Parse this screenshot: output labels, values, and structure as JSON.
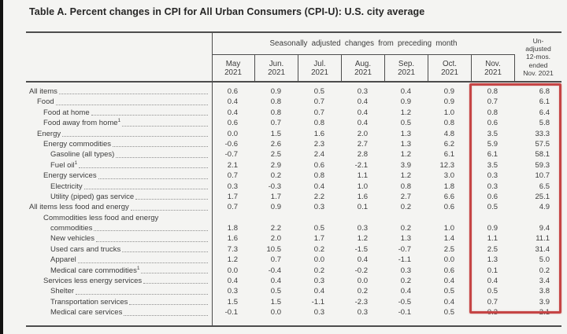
{
  "title": "Table A. Percent changes in CPI for All Urban Consumers (CPI-U): U.S. city average",
  "table": {
    "group_header": "Seasonally adjusted changes from preceding month",
    "unadjusted_header": "Un-\nadjusted\n12-mos.\nended\nNov. 2021",
    "months": [
      {
        "name": "May",
        "year": "2021"
      },
      {
        "name": "Jun.",
        "year": "2021"
      },
      {
        "name": "Jul.",
        "year": "2021"
      },
      {
        "name": "Aug.",
        "year": "2021"
      },
      {
        "name": "Sep.",
        "year": "2021"
      },
      {
        "name": "Oct.",
        "year": "2021"
      },
      {
        "name": "Nov.",
        "year": "2021"
      }
    ],
    "rows": [
      {
        "label": "All items",
        "indent": 0,
        "values": [
          "0.6",
          "0.9",
          "0.5",
          "0.3",
          "0.4",
          "0.9",
          "0.8",
          "6.8"
        ]
      },
      {
        "label": "Food",
        "indent": 1,
        "values": [
          "0.4",
          "0.8",
          "0.7",
          "0.4",
          "0.9",
          "0.9",
          "0.7",
          "6.1"
        ]
      },
      {
        "label": "Food at home",
        "indent": 2,
        "values": [
          "0.4",
          "0.8",
          "0.7",
          "0.4",
          "1.2",
          "1.0",
          "0.8",
          "6.4"
        ]
      },
      {
        "label": "Food away from home",
        "sup": "1",
        "indent": 2,
        "values": [
          "0.6",
          "0.7",
          "0.8",
          "0.4",
          "0.5",
          "0.8",
          "0.6",
          "5.8"
        ]
      },
      {
        "label": "Energy",
        "indent": 1,
        "values": [
          "0.0",
          "1.5",
          "1.6",
          "2.0",
          "1.3",
          "4.8",
          "3.5",
          "33.3"
        ]
      },
      {
        "label": "Energy commodities",
        "indent": 2,
        "values": [
          "-0.6",
          "2.6",
          "2.3",
          "2.7",
          "1.3",
          "6.2",
          "5.9",
          "57.5"
        ]
      },
      {
        "label": "Gasoline (all types)",
        "indent": 3,
        "values": [
          "-0.7",
          "2.5",
          "2.4",
          "2.8",
          "1.2",
          "6.1",
          "6.1",
          "58.1"
        ]
      },
      {
        "label": "Fuel oil",
        "sup": "1",
        "indent": 3,
        "values": [
          "2.1",
          "2.9",
          "0.6",
          "-2.1",
          "3.9",
          "12.3",
          "3.5",
          "59.3"
        ]
      },
      {
        "label": "Energy services",
        "indent": 2,
        "values": [
          "0.7",
          "0.2",
          "0.8",
          "1.1",
          "1.2",
          "3.0",
          "0.3",
          "10.7"
        ]
      },
      {
        "label": "Electricity",
        "indent": 3,
        "values": [
          "0.3",
          "-0.3",
          "0.4",
          "1.0",
          "0.8",
          "1.8",
          "0.3",
          "6.5"
        ]
      },
      {
        "label": "Utility (piped) gas service",
        "indent": 3,
        "values": [
          "1.7",
          "1.7",
          "2.2",
          "1.6",
          "2.7",
          "6.6",
          "0.6",
          "25.1"
        ]
      },
      {
        "label": "All items less food and energy",
        "indent": 0,
        "values": [
          "0.7",
          "0.9",
          "0.3",
          "0.1",
          "0.2",
          "0.6",
          "0.5",
          "4.9"
        ]
      },
      {
        "label": "Commodities less food and energy",
        "label2": "commodities",
        "indent": 2,
        "indent2": 3,
        "values": [
          "1.8",
          "2.2",
          "0.5",
          "0.3",
          "0.2",
          "1.0",
          "0.9",
          "9.4"
        ]
      },
      {
        "label": "New vehicles",
        "indent": 3,
        "values": [
          "1.6",
          "2.0",
          "1.7",
          "1.2",
          "1.3",
          "1.4",
          "1.1",
          "11.1"
        ]
      },
      {
        "label": "Used cars and trucks",
        "indent": 3,
        "values": [
          "7.3",
          "10.5",
          "0.2",
          "-1.5",
          "-0.7",
          "2.5",
          "2.5",
          "31.4"
        ]
      },
      {
        "label": "Apparel",
        "indent": 3,
        "values": [
          "1.2",
          "0.7",
          "0.0",
          "0.4",
          "-1.1",
          "0.0",
          "1.3",
          "5.0"
        ]
      },
      {
        "label": "Medical care commodities",
        "sup": "1",
        "indent": 3,
        "values": [
          "0.0",
          "-0.4",
          "0.2",
          "-0.2",
          "0.3",
          "0.6",
          "0.1",
          "0.2"
        ]
      },
      {
        "label": "Services less energy services",
        "indent": 2,
        "values": [
          "0.4",
          "0.4",
          "0.3",
          "0.0",
          "0.2",
          "0.4",
          "0.4",
          "3.4"
        ]
      },
      {
        "label": "Shelter",
        "indent": 3,
        "values": [
          "0.3",
          "0.5",
          "0.4",
          "0.2",
          "0.4",
          "0.5",
          "0.5",
          "3.8"
        ]
      },
      {
        "label": "Transportation services",
        "indent": 3,
        "values": [
          "1.5",
          "1.5",
          "-1.1",
          "-2.3",
          "-0.5",
          "0.4",
          "0.7",
          "3.9"
        ]
      },
      {
        "label": "Medical care services",
        "indent": 3,
        "values": [
          "-0.1",
          "0.0",
          "0.3",
          "0.3",
          "-0.1",
          "0.5",
          "0.3",
          "2.1"
        ]
      }
    ]
  },
  "highlight": {
    "color": "#c54545"
  }
}
